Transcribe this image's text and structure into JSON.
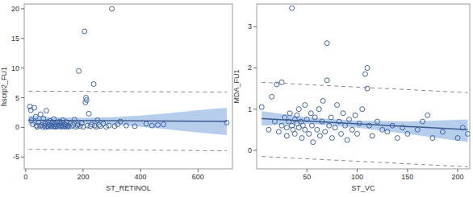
{
  "chart_data": [
    {
      "type": "scatter",
      "x_label": "ST_RETINOL",
      "y_label": "hscrp2_FU1",
      "xlim": [
        -5,
        720
      ],
      "ylim": [
        -7,
        20.8
      ],
      "xticks": [
        0,
        200,
        400,
        600
      ],
      "yticks": [
        -5,
        0,
        5,
        10,
        15,
        20
      ],
      "series": [
        {
          "type": "band",
          "color": "#a9c4e8",
          "x": [
            10,
            100,
            200,
            300,
            400,
            500,
            600,
            700
          ],
          "lower": [
            0.4,
            0.6,
            0.65,
            0.5,
            0.1,
            -0.35,
            -0.85,
            -1.3
          ],
          "upper": [
            2.0,
            1.7,
            1.6,
            1.7,
            2.0,
            2.4,
            2.9,
            3.3
          ]
        },
        {
          "type": "scatter",
          "marker": "circle",
          "color": "#3f66a8",
          "x": [
            15,
            18,
            20,
            25,
            30,
            35,
            38,
            40,
            45,
            50,
            52,
            55,
            60,
            62,
            65,
            68,
            70,
            72,
            75,
            78,
            80,
            82,
            85,
            88,
            90,
            92,
            95,
            98,
            100,
            102,
            105,
            108,
            110,
            112,
            115,
            118,
            120,
            122,
            125,
            128,
            130,
            132,
            135,
            138,
            140,
            142,
            145,
            148,
            150,
            155,
            160,
            165,
            170,
            175,
            180,
            182,
            185,
            190,
            195,
            200,
            205,
            208,
            210,
            212,
            215,
            220,
            225,
            230,
            237,
            240,
            245,
            250,
            255,
            260,
            270,
            280,
            290,
            300,
            310,
            320,
            330,
            350,
            380,
            420,
            440,
            460,
            480,
            700
          ],
          "values": [
            3.5,
            2.9,
            1.2,
            0.5,
            3.3,
            1.8,
            0.3,
            0.1,
            0.8,
            0.2,
            2.2,
            0.4,
            0.1,
            1.5,
            0.3,
            0.6,
            0.05,
            2.8,
            0.2,
            0.9,
            0.1,
            0.4,
            1.1,
            0.2,
            0.3,
            0.7,
            0.1,
            1.4,
            0.2,
            0.5,
            0.1,
            0.3,
            0.8,
            0.15,
            0.4,
            1.0,
            0.2,
            0.6,
            0.1,
            0.3,
            1.2,
            0.2,
            0.5,
            0.1,
            0.4,
            0.9,
            0.2,
            0.3,
            0.1,
            0.6,
            0.2,
            0.4,
            1.3,
            0.1,
            0.3,
            0.5,
            9.5,
            0.2,
            0.7,
            0.1,
            16.2,
            4.2,
            5.0,
            4.6,
            0.3,
            2.3,
            0.2,
            0.5,
            7.3,
            0.3,
            0.1,
            1.2,
            0.4,
            0.2,
            0.6,
            0.1,
            0.3,
            20.0,
            0.2,
            0.5,
            1.0,
            0.3,
            0.2,
            0.6,
            0.3,
            0.4,
            0.5,
            0.8
          ]
        },
        {
          "type": "line",
          "color": "#3c5a8c",
          "x": [
            10,
            700
          ],
          "values": [
            1.2,
            1.0
          ]
        },
        {
          "type": "line",
          "line_style": "dashed",
          "color": "#8c8c8c",
          "x": [
            10,
            700
          ],
          "values": [
            6.1,
            5.95
          ]
        },
        {
          "type": "line",
          "line_style": "dashed",
          "color": "#8c8c8c",
          "x": [
            10,
            700
          ],
          "values": [
            -3.7,
            -3.95
          ]
        }
      ]
    },
    {
      "type": "scatter",
      "x_label": "ST_VC",
      "y_label": "MDA_FU1",
      "xlim": [
        0,
        212
      ],
      "ylim": [
        -0.45,
        3.55
      ],
      "xticks": [
        50,
        100,
        150,
        200
      ],
      "yticks": [
        0,
        1,
        2,
        3
      ],
      "series": [
        {
          "type": "band",
          "color": "#a9c4e8",
          "x": [
            5,
            50,
            100,
            150,
            210
          ],
          "lower": [
            0.6,
            0.65,
            0.55,
            0.4,
            0.2
          ],
          "upper": [
            0.95,
            0.8,
            0.72,
            0.7,
            0.75
          ]
        },
        {
          "type": "scatter",
          "marker": "circle",
          "color": "#3f66a8",
          "x": [
            5,
            12,
            15,
            18,
            20,
            22,
            25,
            25,
            28,
            30,
            30,
            32,
            33,
            35,
            35,
            36,
            38,
            38,
            40,
            40,
            42,
            42,
            44,
            45,
            46,
            48,
            48,
            50,
            52,
            54,
            55,
            56,
            58,
            60,
            62,
            63,
            65,
            66,
            68,
            70,
            70,
            72,
            74,
            75,
            78,
            80,
            82,
            84,
            86,
            88,
            90,
            92,
            95,
            98,
            100,
            102,
            105,
            108,
            110,
            110,
            112,
            115,
            120,
            125,
            130,
            135,
            140,
            145,
            150,
            160,
            165,
            170,
            175,
            185,
            200,
            205,
            210
          ],
          "values": [
            1.05,
            0.5,
            1.3,
            0.7,
            1.6,
            0.45,
            1.65,
            0.6,
            0.8,
            0.55,
            0.35,
            0.7,
            0.9,
            3.45,
            0.6,
            0.5,
            0.75,
            0.4,
            0.65,
            0.85,
            0.55,
            1.0,
            0.7,
            0.3,
            0.6,
            1.1,
            0.5,
            0.75,
            0.4,
            0.9,
            0.6,
            0.2,
            0.8,
            0.5,
            1.0,
            0.35,
            0.7,
            1.2,
            0.45,
            2.6,
            1.7,
            0.6,
            0.8,
            0.3,
            0.55,
            1.1,
            0.7,
            0.4,
            0.9,
            0.6,
            0.25,
            0.75,
            0.5,
            0.85,
            0.4,
            0.65,
            1.0,
            1.85,
            2.0,
            1.5,
            0.6,
            0.35,
            0.7,
            0.5,
            0.45,
            0.6,
            0.3,
            0.55,
            0.4,
            0.5,
            0.7,
            0.85,
            0.3,
            0.45,
            0.3,
            0.55,
            0.4
          ]
        },
        {
          "type": "line",
          "color": "#3c5a8c",
          "x": [
            5,
            210
          ],
          "values": [
            0.77,
            0.5
          ]
        },
        {
          "type": "line",
          "line_style": "dashed",
          "color": "#8c8c8c",
          "x": [
            5,
            210
          ],
          "values": [
            1.65,
            1.4
          ]
        },
        {
          "type": "line",
          "line_style": "dashed",
          "color": "#8c8c8c",
          "x": [
            5,
            210
          ],
          "values": [
            -0.15,
            -0.4
          ]
        }
      ]
    }
  ]
}
